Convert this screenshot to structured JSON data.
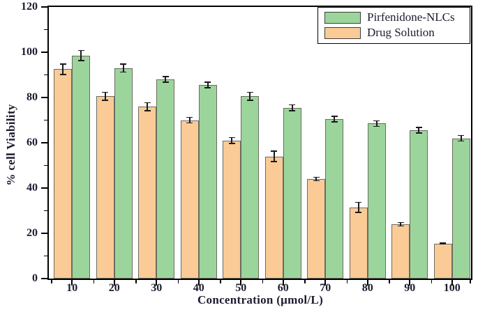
{
  "figure": {
    "background": "#ffffff",
    "text_color": "#1c1c30",
    "axis_color": "#000000",
    "bar_edge_color": "#6b6b5f",
    "error_bar_color": "#1a1a1a"
  },
  "legend": {
    "position": "top-right",
    "entries": [
      {
        "label": "Pirfenidone-NLCs",
        "swatch_color": "#9cd59c"
      },
      {
        "label": "Drug Solution",
        "swatch_color": "#facb97"
      }
    ]
  },
  "chart_data": {
    "type": "bar",
    "title": "",
    "xlabel": "Concentration (μmol/L)",
    "ylabel": "% cell Viability",
    "categories": [
      "10",
      "20",
      "30",
      "40",
      "50",
      "60",
      "70",
      "80",
      "90",
      "100"
    ],
    "series": [
      {
        "name": "Pirfenidone-NLCs",
        "color": "#9cd59c",
        "values": [
          98.5,
          93,
          88,
          85.5,
          80.5,
          75.5,
          70.5,
          68.5,
          65.5,
          62
        ],
        "errors": [
          2.5,
          2,
          1.5,
          1.5,
          2,
          1.5,
          1.5,
          1.5,
          1.5,
          1.5
        ]
      },
      {
        "name": "Drug Solution",
        "color": "#facb97",
        "values": [
          92.5,
          80.5,
          76,
          70,
          61,
          54,
          44,
          31.5,
          24,
          15.5
        ],
        "errors": [
          2.5,
          2,
          2,
          1.5,
          1.5,
          2.5,
          1,
          2.5,
          1,
          0.4
        ]
      }
    ],
    "bar_order_within_group": [
      "Drug Solution",
      "Pirfenidone-NLCs"
    ],
    "ylim": [
      0,
      120
    ],
    "yticks": [
      0,
      20,
      40,
      60,
      80,
      100,
      120
    ],
    "y_minor_ticks": [
      10,
      30,
      50,
      70,
      90,
      110
    ],
    "error_bars": true,
    "grid": false,
    "legend_position": "top-right"
  }
}
